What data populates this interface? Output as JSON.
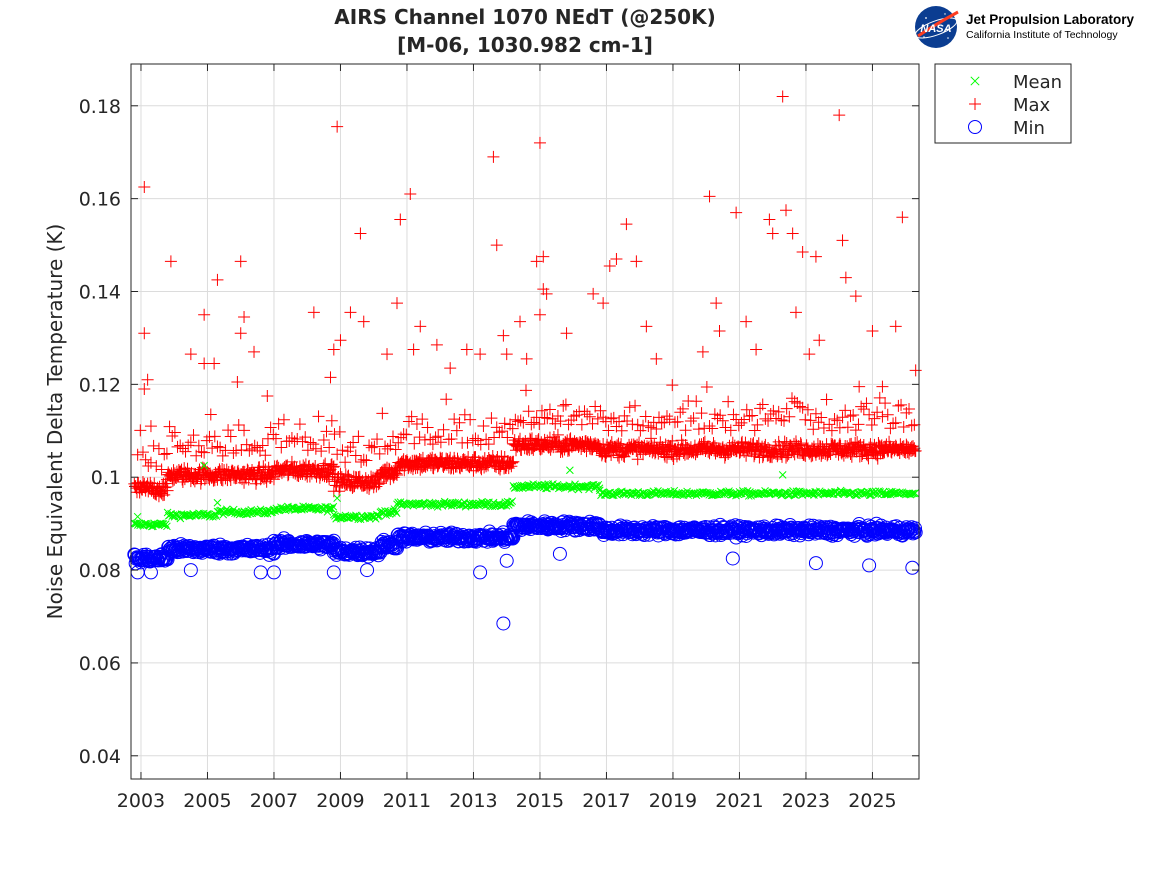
{
  "header": {
    "title_line1": "AIRS Channel 1070 NEdT (@250K)",
    "title_line2": "[M-06, 1030.982 cm-1]"
  },
  "branding": {
    "logo_text": "NASA",
    "org_name": "Jet Propulsion Laboratory",
    "org_sub": "California Institute of Technology"
  },
  "chart_data": {
    "type": "scatter",
    "title": "AIRS Channel 1070 NEdT (@250K)",
    "subtitle": "[M-06, 1030.982 cm-1]",
    "xlabel": "",
    "ylabel": "Noise Equivalent Delta Temperature (K)",
    "xlim": [
      2002.7,
      2026.4
    ],
    "ylim": [
      0.035,
      0.189
    ],
    "xticks": [
      2003,
      2005,
      2007,
      2009,
      2011,
      2013,
      2015,
      2017,
      2019,
      2021,
      2023,
      2025
    ],
    "yticks": [
      0.04,
      0.06,
      0.08,
      0.1,
      0.12,
      0.14,
      0.16,
      0.18
    ],
    "ytick_labels": [
      "0.04",
      "0.06",
      "0.08",
      "0.1",
      "0.12",
      "0.14",
      "0.16",
      "0.18"
    ],
    "grid": true,
    "legend_position": "outside-top-right",
    "colors": {
      "mean": "#00ff00",
      "max": "#ff0000",
      "min": "#0000ff"
    },
    "series": [
      {
        "name": "Mean",
        "marker": "x",
        "color": "#00ff00",
        "segments": [
          {
            "x": [
              2002.8,
              2003.8
            ],
            "y": 0.0898
          },
          {
            "x": [
              2003.8,
              2005.3
            ],
            "y": 0.0918
          },
          {
            "x": [
              2005.3,
              2007.0
            ],
            "y": 0.0925
          },
          {
            "x": [
              2007.0,
              2008.8
            ],
            "y": 0.0932
          },
          {
            "x": [
              2008.8,
              2010.2
            ],
            "y": 0.0915
          },
          {
            "x": [
              2010.2,
              2010.7
            ],
            "y": 0.0925
          },
          {
            "x": [
              2010.7,
              2014.2
            ],
            "y": 0.0942
          },
          {
            "x": [
              2014.2,
              2016.8
            ],
            "y": 0.098
          },
          {
            "x": [
              2016.8,
              2026.3
            ],
            "y": 0.0965
          }
        ],
        "outliers": [
          {
            "x": 2002.9,
            "y": 0.0915
          },
          {
            "x": 2005.3,
            "y": 0.0945
          },
          {
            "x": 2008.9,
            "y": 0.0955
          },
          {
            "x": 2015.9,
            "y": 0.1015
          },
          {
            "x": 2022.3,
            "y": 0.1005
          },
          {
            "x": 2004.9,
            "y": 0.1025
          }
        ]
      },
      {
        "name": "Max",
        "marker": "+",
        "color": "#ff0000",
        "segments": [
          {
            "x": [
              2002.8,
              2003.8
            ],
            "y": 0.0975
          },
          {
            "x": [
              2003.8,
              2007.0
            ],
            "y": 0.1005
          },
          {
            "x": [
              2007.0,
              2008.8
            ],
            "y": 0.1015
          },
          {
            "x": [
              2008.8,
              2010.2
            ],
            "y": 0.099
          },
          {
            "x": [
              2010.2,
              2010.7
            ],
            "y": 0.101
          },
          {
            "x": [
              2010.7,
              2014.2
            ],
            "y": 0.103
          },
          {
            "x": [
              2014.2,
              2016.8
            ],
            "y": 0.107
          },
          {
            "x": [
              2016.8,
              2026.3
            ],
            "y": 0.106
          }
        ],
        "outliers": [
          {
            "x": 2003.1,
            "y": 0.1625
          },
          {
            "x": 2003.1,
            "y": 0.131
          },
          {
            "x": 2003.2,
            "y": 0.121
          },
          {
            "x": 2003.1,
            "y": 0.119
          },
          {
            "x": 2003.3,
            "y": 0.111
          },
          {
            "x": 2003.9,
            "y": 0.1465
          },
          {
            "x": 2004.5,
            "y": 0.1265
          },
          {
            "x": 2004.9,
            "y": 0.135
          },
          {
            "x": 2005.3,
            "y": 0.1425
          },
          {
            "x": 2004.9,
            "y": 0.1245
          },
          {
            "x": 2005.2,
            "y": 0.1245
          },
          {
            "x": 2005.1,
            "y": 0.1135
          },
          {
            "x": 2005.9,
            "y": 0.1205
          },
          {
            "x": 2006.0,
            "y": 0.1465
          },
          {
            "x": 2006.1,
            "y": 0.1345
          },
          {
            "x": 2006.4,
            "y": 0.127
          },
          {
            "x": 2006.0,
            "y": 0.131
          },
          {
            "x": 2006.8,
            "y": 0.1175
          },
          {
            "x": 2008.2,
            "y": 0.1355
          },
          {
            "x": 2008.7,
            "y": 0.1215
          },
          {
            "x": 2008.9,
            "y": 0.1755
          },
          {
            "x": 2008.8,
            "y": 0.1275
          },
          {
            "x": 2009.0,
            "y": 0.1295
          },
          {
            "x": 2009.3,
            "y": 0.1355
          },
          {
            "x": 2009.6,
            "y": 0.1525
          },
          {
            "x": 2009.7,
            "y": 0.1335
          },
          {
            "x": 2010.4,
            "y": 0.1265
          },
          {
            "x": 2010.7,
            "y": 0.1375
          },
          {
            "x": 2010.8,
            "y": 0.1555
          },
          {
            "x": 2011.1,
            "y": 0.161
          },
          {
            "x": 2011.2,
            "y": 0.1275
          },
          {
            "x": 2011.4,
            "y": 0.1325
          },
          {
            "x": 2011.9,
            "y": 0.1285
          },
          {
            "x": 2012.3,
            "y": 0.1235
          },
          {
            "x": 2012.8,
            "y": 0.1275
          },
          {
            "x": 2013.2,
            "y": 0.1265
          },
          {
            "x": 2013.6,
            "y": 0.169
          },
          {
            "x": 2013.7,
            "y": 0.15
          },
          {
            "x": 2013.9,
            "y": 0.1305
          },
          {
            "x": 2014.0,
            "y": 0.1265
          },
          {
            "x": 2014.4,
            "y": 0.1335
          },
          {
            "x": 2014.6,
            "y": 0.1255
          },
          {
            "x": 2014.9,
            "y": 0.1465
          },
          {
            "x": 2015.0,
            "y": 0.172
          },
          {
            "x": 2015.1,
            "y": 0.1475
          },
          {
            "x": 2015.1,
            "y": 0.1405
          },
          {
            "x": 2015.2,
            "y": 0.1395
          },
          {
            "x": 2015.0,
            "y": 0.135
          },
          {
            "x": 2015.8,
            "y": 0.131
          },
          {
            "x": 2016.6,
            "y": 0.1395
          },
          {
            "x": 2016.9,
            "y": 0.1375
          },
          {
            "x": 2017.1,
            "y": 0.1455
          },
          {
            "x": 2017.3,
            "y": 0.147
          },
          {
            "x": 2017.6,
            "y": 0.1545
          },
          {
            "x": 2017.9,
            "y": 0.1465
          },
          {
            "x": 2018.2,
            "y": 0.1325
          },
          {
            "x": 2018.5,
            "y": 0.1255
          },
          {
            "x": 2019.9,
            "y": 0.127
          },
          {
            "x": 2020.1,
            "y": 0.1605
          },
          {
            "x": 2020.3,
            "y": 0.1375
          },
          {
            "x": 2020.4,
            "y": 0.1315
          },
          {
            "x": 2020.9,
            "y": 0.157
          },
          {
            "x": 2021.2,
            "y": 0.1335
          },
          {
            "x": 2021.5,
            "y": 0.1275
          },
          {
            "x": 2021.9,
            "y": 0.1555
          },
          {
            "x": 2022.0,
            "y": 0.1525
          },
          {
            "x": 2022.3,
            "y": 0.182
          },
          {
            "x": 2022.4,
            "y": 0.1575
          },
          {
            "x": 2022.6,
            "y": 0.1525
          },
          {
            "x": 2022.7,
            "y": 0.1355
          },
          {
            "x": 2022.9,
            "y": 0.1485
          },
          {
            "x": 2023.3,
            "y": 0.1475
          },
          {
            "x": 2023.4,
            "y": 0.1295
          },
          {
            "x": 2023.1,
            "y": 0.1265
          },
          {
            "x": 2024.0,
            "y": 0.178
          },
          {
            "x": 2024.1,
            "y": 0.151
          },
          {
            "x": 2024.2,
            "y": 0.143
          },
          {
            "x": 2024.5,
            "y": 0.139
          },
          {
            "x": 2025.0,
            "y": 0.1315
          },
          {
            "x": 2025.7,
            "y": 0.1325
          },
          {
            "x": 2025.9,
            "y": 0.156
          },
          {
            "x": 2026.3,
            "y": 0.123
          },
          {
            "x": 2025.3,
            "y": 0.1195
          },
          {
            "x": 2024.6,
            "y": 0.1195
          }
        ]
      },
      {
        "name": "Min",
        "marker": "o",
        "color": "#0000ff",
        "segments": [
          {
            "x": [
              2002.8,
              2003.8
            ],
            "y": 0.0825
          },
          {
            "x": [
              2003.8,
              2007.0
            ],
            "y": 0.0845
          },
          {
            "x": [
              2007.0,
              2008.8
            ],
            "y": 0.0855
          },
          {
            "x": [
              2008.8,
              2010.2
            ],
            "y": 0.084
          },
          {
            "x": [
              2010.2,
              2010.7
            ],
            "y": 0.0855
          },
          {
            "x": [
              2010.7,
              2014.2
            ],
            "y": 0.087
          },
          {
            "x": [
              2014.2,
              2016.8
            ],
            "y": 0.0895
          },
          {
            "x": [
              2016.8,
              2026.3
            ],
            "y": 0.0885
          }
        ],
        "outliers": [
          {
            "x": 2002.9,
            "y": 0.0795
          },
          {
            "x": 2003.3,
            "y": 0.0795
          },
          {
            "x": 2004.5,
            "y": 0.08
          },
          {
            "x": 2006.6,
            "y": 0.0795
          },
          {
            "x": 2007.0,
            "y": 0.0795
          },
          {
            "x": 2008.8,
            "y": 0.0795
          },
          {
            "x": 2009.8,
            "y": 0.08
          },
          {
            "x": 2013.2,
            "y": 0.0795
          },
          {
            "x": 2013.9,
            "y": 0.0685
          },
          {
            "x": 2014.0,
            "y": 0.082
          },
          {
            "x": 2015.6,
            "y": 0.0835
          },
          {
            "x": 2020.8,
            "y": 0.0825
          },
          {
            "x": 2023.3,
            "y": 0.0815
          },
          {
            "x": 2024.9,
            "y": 0.081
          },
          {
            "x": 2026.2,
            "y": 0.0805
          }
        ]
      }
    ]
  }
}
